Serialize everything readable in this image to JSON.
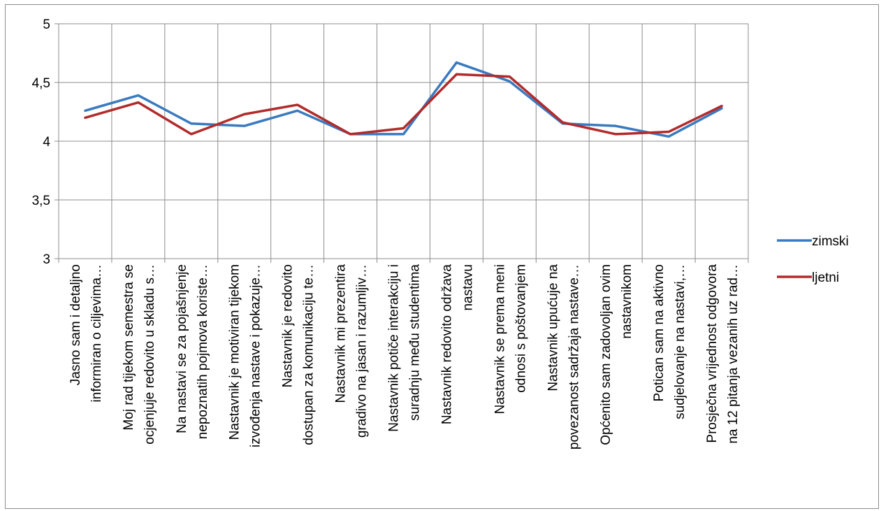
{
  "chart_data": {
    "type": "line",
    "ylim": [
      3,
      5
    ],
    "y_ticks": [
      "3",
      "3,5",
      "4",
      "4,5",
      "5"
    ],
    "y_tick_values": [
      3,
      3.5,
      4,
      4.5,
      5
    ],
    "grid": "horizontal",
    "legend_position": "right",
    "categories": [
      [
        "Jasno sam i detaljno",
        "informiran o ciljevima…"
      ],
      [
        "Moj rad tijekom semestra se",
        "ocjenjuje redovito u skladu s…"
      ],
      [
        "Na nastavi se za pojašnjenje",
        "nepoznatih pojmova koriste…"
      ],
      [
        "Nastavnik je motiviran tijekom",
        "izvođenja nastave i pokazuje…"
      ],
      [
        "Nastavnik je redovito",
        "dostupan za komunikaciju te…"
      ],
      [
        "Nastavnik mi prezentira",
        "gradivo na jasan i razumljiv…"
      ],
      [
        "Nastavnik potiče interakciju i",
        "suradnju među studentima"
      ],
      [
        "Nastavnik redovito održava",
        "nastavu"
      ],
      [
        "Nastavnik se prema meni",
        "odnosi s poštovanjem"
      ],
      [
        "Nastavnik upućuje na",
        "povezanost sadržaja nastave…"
      ],
      [
        "Općenito sam zadovoljan ovim",
        "nastavnikom"
      ],
      [
        "Potican sam na aktivno",
        "sudjelovanje na nastavi,…"
      ],
      [
        "Prosječna vrijednost odgovora",
        "na 12 pitanja vezanih uz rad…"
      ]
    ],
    "series": [
      {
        "name": "zimski",
        "color": "#3a7abf",
        "values": [
          4.26,
          4.39,
          4.15,
          4.13,
          4.26,
          4.06,
          4.06,
          4.67,
          4.51,
          4.15,
          4.13,
          4.04,
          4.28
        ]
      },
      {
        "name": "ljetni",
        "color": "#b22b2b",
        "values": [
          4.2,
          4.33,
          4.06,
          4.23,
          4.31,
          4.06,
          4.11,
          4.57,
          4.55,
          4.16,
          4.06,
          4.08,
          4.3
        ]
      }
    ],
    "gridline_color": "#8c8c8c"
  }
}
